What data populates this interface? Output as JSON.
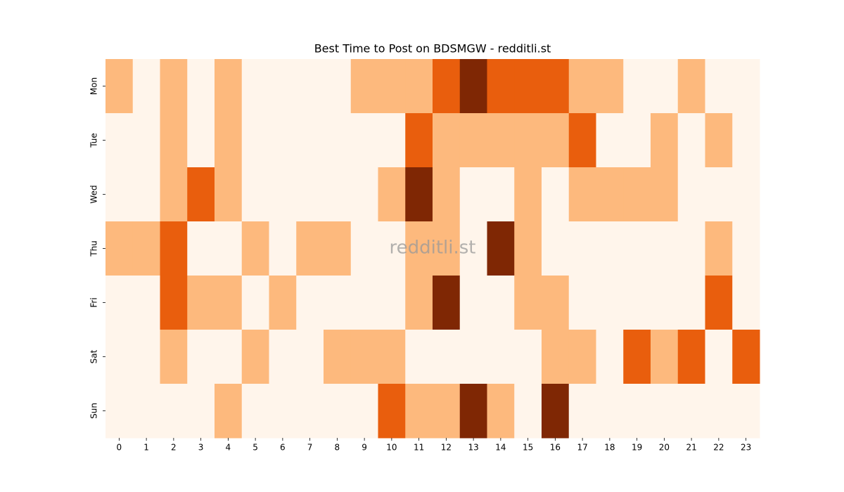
{
  "chart_data": {
    "type": "heatmap",
    "title": "Best Time to Post on BDSMGW - redditli.st",
    "watermark": "redditli.st",
    "x": [
      0,
      1,
      2,
      3,
      4,
      5,
      6,
      7,
      8,
      9,
      10,
      11,
      12,
      13,
      14,
      15,
      16,
      17,
      18,
      19,
      20,
      21,
      22,
      23
    ],
    "y": [
      "Mon",
      "Tue",
      "Wed",
      "Thu",
      "Fri",
      "Sat",
      "Sun"
    ],
    "values": [
      [
        1,
        0,
        1,
        0,
        1,
        0,
        0,
        0,
        0,
        1,
        1,
        1,
        2,
        3,
        2,
        2,
        2,
        1,
        1,
        0,
        0,
        1,
        0,
        0
      ],
      [
        0,
        0,
        1,
        0,
        1,
        0,
        0,
        0,
        0,
        0,
        0,
        2,
        1,
        1,
        1,
        1,
        1,
        2,
        0,
        0,
        1,
        0,
        1,
        0
      ],
      [
        0,
        0,
        1,
        2,
        1,
        0,
        0,
        0,
        0,
        0,
        1,
        3,
        1,
        0,
        0,
        1,
        0,
        1,
        1,
        1,
        1,
        0,
        0,
        0
      ],
      [
        1,
        1,
        2,
        0,
        0,
        1,
        0,
        1,
        1,
        0,
        0,
        1,
        1,
        0,
        3,
        1,
        0,
        0,
        0,
        0,
        0,
        0,
        1,
        0
      ],
      [
        0,
        0,
        2,
        1,
        1,
        0,
        1,
        0,
        0,
        0,
        0,
        1,
        3,
        0,
        0,
        1,
        1,
        0,
        0,
        0,
        0,
        0,
        2,
        0
      ],
      [
        0,
        0,
        1,
        0,
        0,
        1,
        0,
        0,
        1,
        1,
        1,
        0,
        0,
        0,
        0,
        0,
        1,
        1,
        0,
        2,
        1,
        2,
        0,
        2
      ],
      [
        0,
        0,
        0,
        0,
        1,
        0,
        0,
        0,
        0,
        0,
        2,
        1,
        1,
        3,
        1,
        0,
        3,
        0,
        0,
        0,
        0,
        0,
        0,
        0
      ]
    ],
    "vlim": [
      0,
      3
    ],
    "colors": [
      "#fff5eb",
      "#fdb97d",
      "#e95e0d",
      "#7f2704"
    ]
  }
}
